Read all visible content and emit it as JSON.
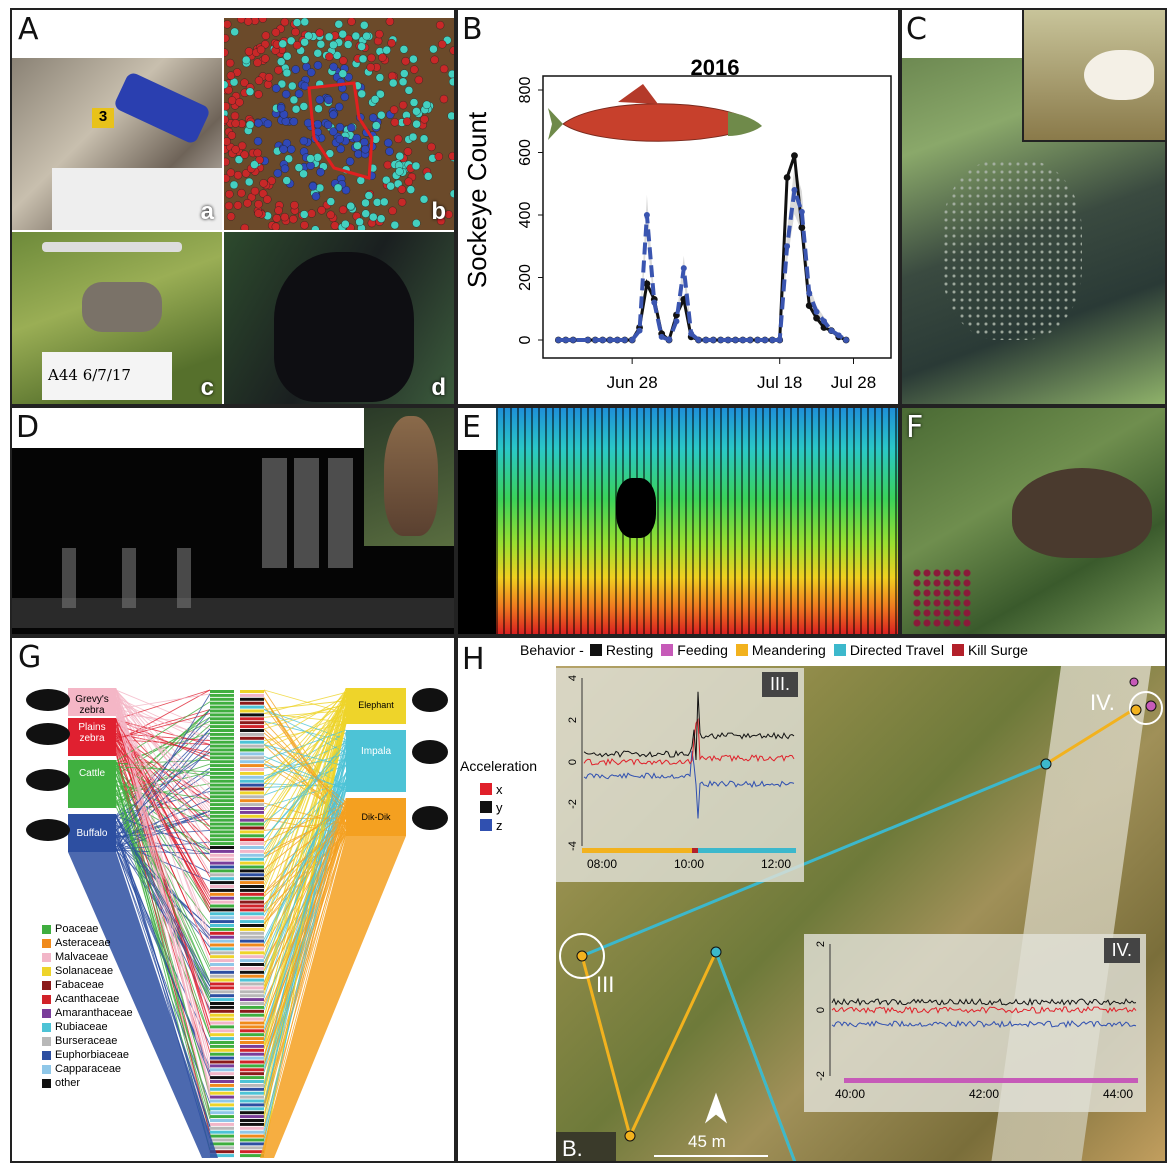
{
  "panels": {
    "A": {
      "label": "A",
      "subs": [
        "a",
        "b",
        "c",
        "d"
      ],
      "tag_number": "3",
      "note_text": "A44  6/7/17"
    },
    "B": {
      "label": "B"
    },
    "C": {
      "label": "C"
    },
    "D": {
      "label": "D"
    },
    "E": {
      "label": "E"
    },
    "F": {
      "label": "F"
    },
    "G": {
      "label": "G",
      "animals_left": [
        "Grevy's zebra",
        "Plains zebra",
        "Cattle",
        "Buffalo"
      ],
      "animals_right": [
        "Elephant",
        "Impala",
        "Dik-Dik"
      ],
      "families": [
        {
          "name": "Poaceae",
          "color": "#3fae3f"
        },
        {
          "name": "Asteraceae",
          "color": "#f08a1c"
        },
        {
          "name": "Malvaceae",
          "color": "#f2b6c8"
        },
        {
          "name": "Solanaceae",
          "color": "#eed42a"
        },
        {
          "name": "Fabaceae",
          "color": "#8b1a1a"
        },
        {
          "name": "Acanthaceae",
          "color": "#d1232a"
        },
        {
          "name": "Amaranthaceae",
          "color": "#7a3d9a"
        },
        {
          "name": "Rubiaceae",
          "color": "#4dc3d6"
        },
        {
          "name": "Burseraceae",
          "color": "#b8b8b8"
        },
        {
          "name": "Euphorbiaceae",
          "color": "#2d4fa1"
        },
        {
          "name": "Capparaceae",
          "color": "#8fc7e8"
        },
        {
          "name": "other",
          "color": "#111111"
        }
      ]
    },
    "H": {
      "label": "H",
      "behavior_title": "Behavior -",
      "behaviors": [
        {
          "name": "Resting",
          "color": "#111111"
        },
        {
          "name": "Feeding",
          "color": "#c65ab8"
        },
        {
          "name": "Meandering",
          "color": "#f2b21e"
        },
        {
          "name": "Directed Travel",
          "color": "#3cb8cc"
        },
        {
          "name": "Kill Surge",
          "color": "#b3202a"
        }
      ],
      "accel_title": "Acceleration",
      "axes": [
        {
          "name": "x",
          "color": "#e0202a"
        },
        {
          "name": "y",
          "color": "#111111"
        },
        {
          "name": "z",
          "color": "#3050b0"
        }
      ],
      "inset3": {
        "label": "III.",
        "ticks": [
          "08:00",
          "10:00",
          "12:00"
        ],
        "yticks": [
          "4",
          "2",
          "0",
          "-2",
          "-4"
        ]
      },
      "inset4": {
        "label": "IV.",
        "ticks": [
          "40:00",
          "42:00",
          "44:00"
        ],
        "yticks": [
          "2",
          "0",
          "-2"
        ]
      },
      "map_labels": {
        "iii": "III",
        "iv": "IV.",
        "b": "B.",
        "scale": "45 m"
      }
    }
  },
  "chart_data": {
    "type": "line",
    "title": "2016",
    "ylabel": "Sockeye Count",
    "xlabel": "",
    "ylim": [
      0,
      800
    ],
    "yticks": [
      0,
      200,
      400,
      600,
      800
    ],
    "xticks": [
      {
        "label": "Jun 28",
        "day": 0
      },
      {
        "label": "Jul 18",
        "day": 20
      },
      {
        "label": "Jul 28",
        "day": 30
      }
    ],
    "x": [
      -10,
      -9,
      -8,
      -6,
      -5,
      -4,
      -3,
      -2,
      -1,
      0,
      1,
      2,
      3,
      4,
      5,
      6,
      7,
      8,
      9,
      10,
      11,
      12,
      13,
      14,
      15,
      16,
      17,
      18,
      19,
      20,
      21,
      22,
      23,
      24,
      25,
      26,
      27,
      28,
      29,
      30,
      31,
      32,
      33
    ],
    "series": [
      {
        "name": "",
        "style": "solid",
        "color": "#111111",
        "values": [
          0,
          0,
          0,
          0,
          0,
          0,
          0,
          0,
          0,
          0,
          40,
          180,
          130,
          20,
          0,
          80,
          130,
          10,
          0,
          0,
          0,
          0,
          0,
          0,
          0,
          0,
          0,
          0,
          0,
          0,
          520,
          590,
          360,
          110,
          70,
          40,
          30,
          10,
          0,
          null,
          null,
          null,
          null
        ]
      },
      {
        "name": "",
        "style": "dashed",
        "color": "#3a55b0",
        "values": [
          0,
          0,
          0,
          0,
          0,
          0,
          0,
          0,
          0,
          0,
          30,
          400,
          120,
          10,
          0,
          60,
          230,
          20,
          0,
          0,
          0,
          0,
          0,
          0,
          0,
          0,
          0,
          0,
          0,
          0,
          300,
          480,
          410,
          150,
          90,
          60,
          30,
          15,
          0,
          null,
          null,
          null,
          null
        ]
      }
    ]
  }
}
